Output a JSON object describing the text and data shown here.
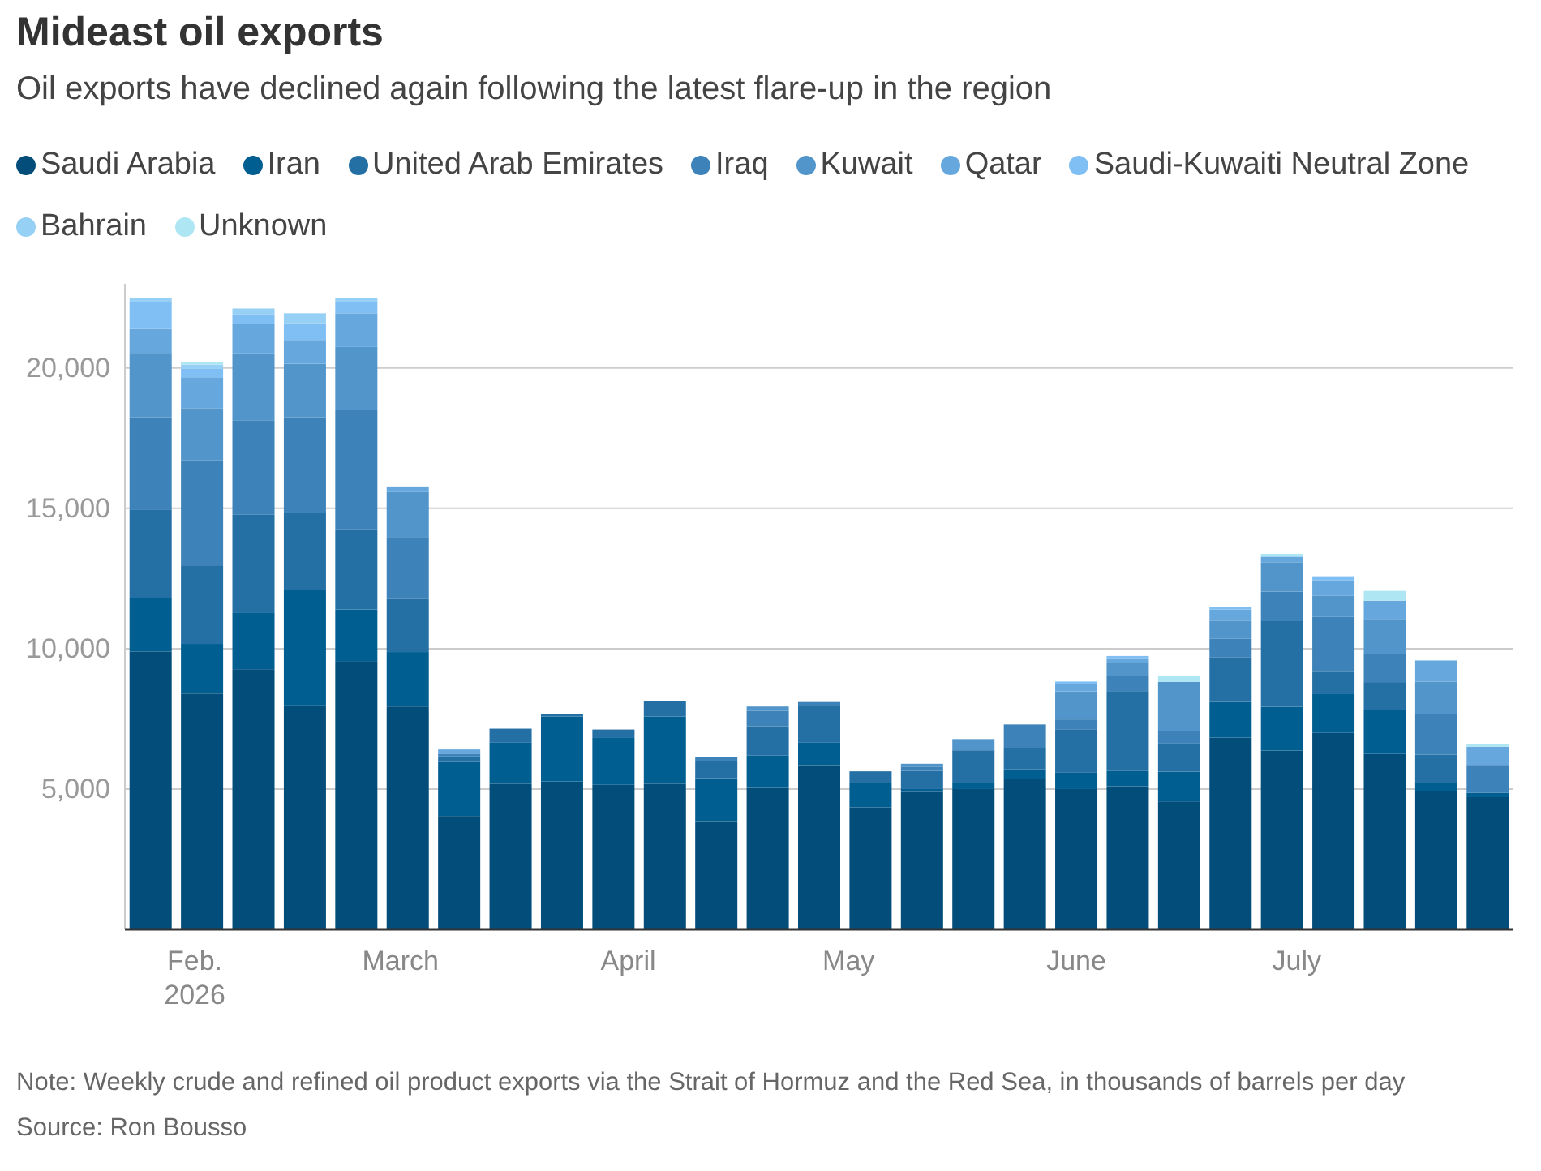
{
  "chart_data": {
    "type": "bar",
    "stacked": true,
    "title": "Mideast oil exports",
    "subtitle": "Oil exports have declined again following the latest flare-up in the region",
    "annotations": [
      "Note: Weekly crude and refined oil product exports via the Strait of Hormuz and the Red Sea, in thousands of barrels per day",
      "Source: Ron Bousso"
    ],
    "x": [
      "2026-01-26",
      "2026-02-02",
      "2026-02-09",
      "2026-02-16",
      "2026-02-23",
      "2026-03-02",
      "2026-03-09",
      "2026-03-16",
      "2026-03-23",
      "2026-03-30",
      "2026-04-06",
      "2026-04-13",
      "2026-04-20",
      "2026-04-27",
      "2026-05-04",
      "2026-05-11",
      "2026-05-18",
      "2026-05-25",
      "2026-06-01",
      "2026-06-08",
      "2026-06-15",
      "2026-06-22",
      "2026-06-29",
      "2026-07-06",
      "2026-07-13",
      "2026-07-20",
      "2026-07-27"
    ],
    "xlim": [
      "2026-01-22T12:00",
      "2026-07-30T12:00"
    ],
    "xticks": [
      {
        "value": "2026-02-01",
        "label": "Feb.\n2026"
      },
      {
        "value": "2026-03-01",
        "label": "March"
      },
      {
        "value": "2026-04-01",
        "label": "April"
      },
      {
        "value": "2026-05-01",
        "label": "May"
      },
      {
        "value": "2026-06-01",
        "label": "June"
      },
      {
        "value": "2026-07-01",
        "label": "July"
      }
    ],
    "ylim": [
      0,
      23000
    ],
    "yticks": [
      {
        "value": 5000,
        "label": "5,000"
      },
      {
        "value": 10000,
        "label": "10,000"
      },
      {
        "value": 15000,
        "label": "15,000"
      },
      {
        "value": 20000,
        "label": "20,000"
      }
    ],
    "grid": "y",
    "legend": "top",
    "series": [
      {
        "name": "Saudi Arabia",
        "color": "#024d7a",
        "values": [
          9900,
          8400,
          9270,
          7980,
          9560,
          7940,
          4040,
          5190,
          5270,
          5150,
          5190,
          3830,
          5040,
          5850,
          4350,
          4900,
          5000,
          5350,
          5000,
          5100,
          4560,
          6830,
          6370,
          7000,
          6250,
          4940,
          4710
        ]
      },
      {
        "name": "Iran",
        "color": "#005e91",
        "values": [
          1890,
          1770,
          2000,
          4120,
          1840,
          1940,
          1920,
          1460,
          2310,
          1670,
          2390,
          1560,
          1150,
          800,
          880,
          100,
          230,
          350,
          580,
          540,
          1060,
          1270,
          1560,
          1380,
          1560,
          290,
          150
        ]
      },
      {
        "name": "United Arab Emirates",
        "color": "#2470a5",
        "values": [
          3150,
          2800,
          3500,
          2750,
          2850,
          1900,
          200,
          500,
          100,
          300,
          550,
          600,
          1050,
          1350,
          400,
          650,
          1150,
          750,
          1550,
          2850,
          1000,
          1600,
          3050,
          800,
          1000,
          1000,
          null
        ]
      },
      {
        "name": "Iraq",
        "color": "#3d83b9",
        "values": [
          3300,
          3750,
          3350,
          3400,
          4250,
          2200,
          100,
          null,
          null,
          null,
          null,
          150,
          550,
          100,
          null,
          150,
          null,
          850,
          350,
          550,
          450,
          650,
          1050,
          1950,
          1000,
          1450,
          1000
        ]
      },
      {
        "name": "Kuwait",
        "color": "#5195ca",
        "values": [
          2300,
          1850,
          2400,
          1900,
          2250,
          1600,
          null,
          null,
          null,
          null,
          null,
          null,
          150,
          null,
          null,
          100,
          400,
          null,
          1000,
          450,
          1750,
          650,
          1050,
          750,
          1250,
          1150,
          null
        ]
      },
      {
        "name": "Qatar",
        "color": "#66a8de",
        "values": [
          850,
          1100,
          1050,
          850,
          1200,
          200,
          150,
          null,
          null,
          null,
          null,
          null,
          null,
          null,
          null,
          null,
          null,
          null,
          250,
          150,
          null,
          400,
          200,
          550,
          650,
          750,
          650
        ]
      },
      {
        "name": "Saudi-Kuwaiti Neutral Zone",
        "color": "#7fbff3",
        "values": [
          950,
          300,
          350,
          600,
          400,
          null,
          null,
          null,
          null,
          null,
          null,
          null,
          null,
          null,
          null,
          null,
          null,
          null,
          100,
          100,
          null,
          100,
          null,
          150,
          null,
          null,
          null
        ]
      },
      {
        "name": "Bahrain",
        "color": "#97d0f5",
        "values": [
          150,
          150,
          200,
          350,
          150,
          null,
          null,
          null,
          null,
          null,
          null,
          null,
          null,
          null,
          null,
          null,
          null,
          null,
          null,
          null,
          null,
          null,
          null,
          null,
          null,
          null,
          null
        ]
      },
      {
        "name": "Unknown",
        "color": "#aee6f4",
        "values": [
          null,
          100,
          null,
          null,
          null,
          null,
          null,
          null,
          null,
          null,
          null,
          null,
          null,
          null,
          null,
          null,
          null,
          null,
          null,
          null,
          200,
          null,
          100,
          null,
          350,
          null,
          100
        ]
      }
    ]
  }
}
